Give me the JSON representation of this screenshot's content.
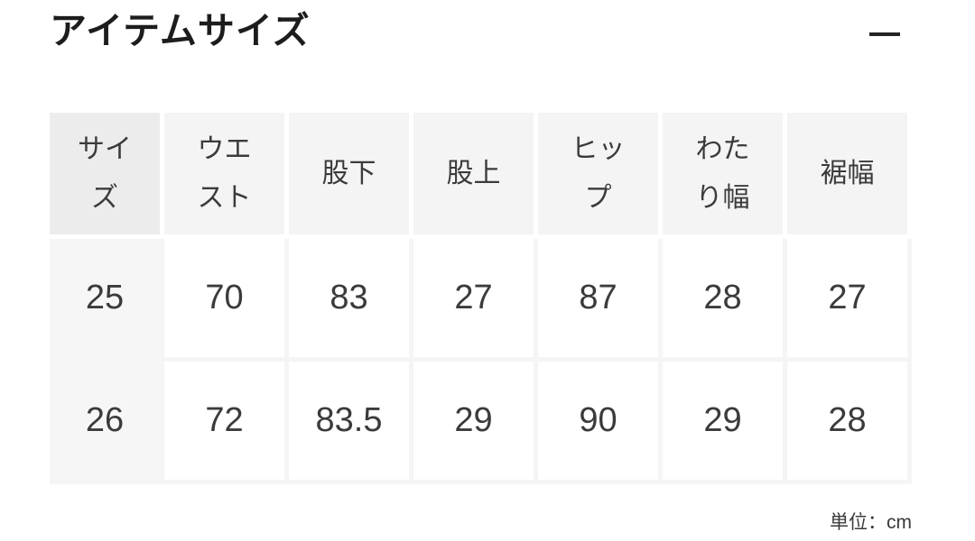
{
  "section": {
    "title": "アイテムサイズ"
  },
  "icons": {
    "section_toggle": "minus-icon"
  },
  "size_table": {
    "columns": [
      "サイズ",
      "ウエスト",
      "股下",
      "股上",
      "ヒップ",
      "わたり幅",
      "裾幅"
    ],
    "rows": [
      {
        "cells": [
          "25",
          "70",
          "83",
          "27",
          "87",
          "28",
          "27"
        ]
      },
      {
        "cells": [
          "26",
          "72",
          "83.5",
          "29",
          "90",
          "29",
          "28"
        ]
      }
    ]
  },
  "footnote": {
    "unit_label": "単位：cm"
  },
  "colors": {
    "title_text": "#1d1d1d",
    "table_text": "#3b3b3b",
    "header_cell_bg": "#f4f4f5",
    "header_first_cell_bg": "#ececed",
    "body_first_cell_bg": "#f6f6f7",
    "body_cell_border": "#f5f5f6",
    "header_cell_border": "#ffffff",
    "icon_color": "#242424"
  }
}
